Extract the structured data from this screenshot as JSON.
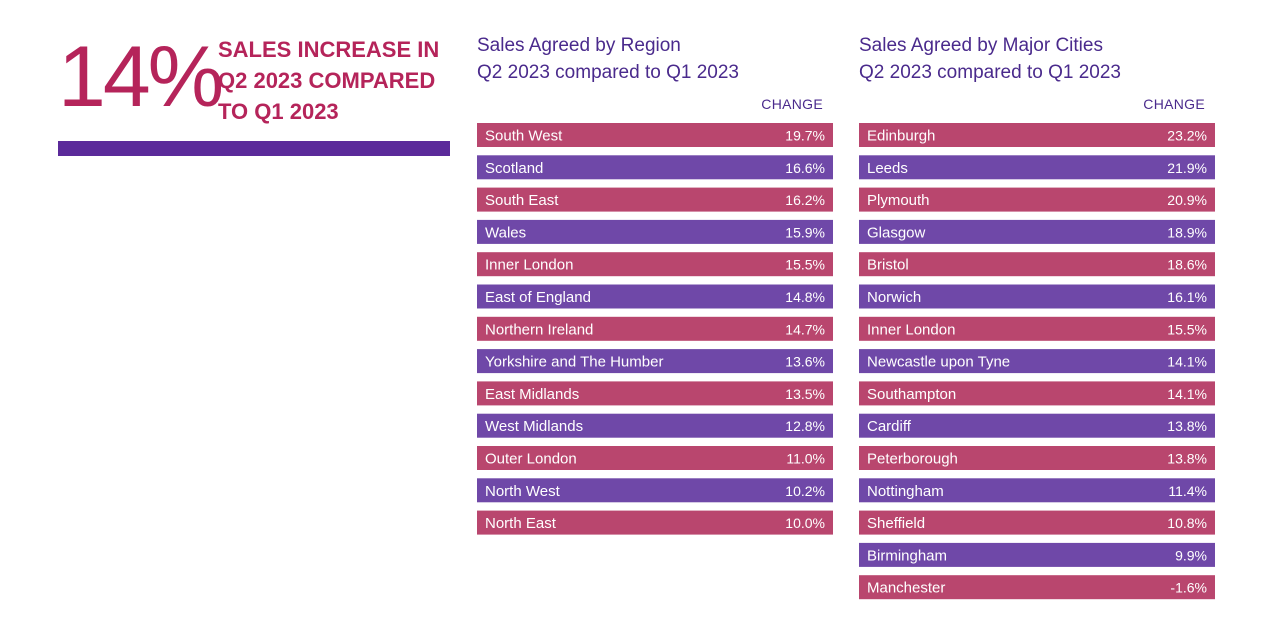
{
  "headline": {
    "figure": "14%",
    "text": "SALES INCREASE IN Q2 2023 COMPARED TO Q1 2023"
  },
  "colors": {
    "pink": "#b9466e",
    "purple": "#6f48a8",
    "rule": "#5b2a9a",
    "accent_text": "#b5245a",
    "title_text": "#4a2a8c"
  },
  "chart_data": [
    {
      "type": "table",
      "title": "Sales Agreed by Region",
      "subtitle": "Q2 2023 compared to Q1 2023",
      "column_header": "CHANGE",
      "categories": [
        "South West",
        "Scotland",
        "South East",
        "Wales",
        "Inner London",
        "East of England",
        "Northern Ireland",
        "Yorkshire and The Humber",
        "East Midlands",
        "West Midlands",
        "Outer London",
        "North West",
        "North East"
      ],
      "values": [
        19.7,
        16.6,
        16.2,
        15.9,
        15.5,
        14.8,
        14.7,
        13.6,
        13.5,
        12.8,
        11.0,
        10.2,
        10.0
      ],
      "value_labels": [
        "19.7%",
        "16.6%",
        "16.2%",
        "15.9%",
        "15.5%",
        "14.8%",
        "14.7%",
        "13.6%",
        "13.5%",
        "12.8%",
        "11.0%",
        "10.2%",
        "10.0%"
      ]
    },
    {
      "type": "table",
      "title": "Sales Agreed by Major Cities",
      "subtitle": "Q2 2023 compared to Q1 2023",
      "column_header": "CHANGE",
      "categories": [
        "Edinburgh",
        "Leeds",
        "Plymouth",
        "Glasgow",
        "Bristol",
        "Norwich",
        "Inner London",
        "Newcastle upon Tyne",
        "Southampton",
        "Cardiff",
        "Peterborough",
        "Nottingham",
        "Sheffield",
        "Birmingham",
        "Manchester"
      ],
      "values": [
        23.2,
        21.9,
        20.9,
        18.9,
        18.6,
        16.1,
        15.5,
        14.1,
        14.1,
        13.8,
        13.8,
        11.4,
        10.8,
        9.9,
        -1.6
      ],
      "value_labels": [
        "23.2%",
        "21.9%",
        "20.9%",
        "18.9%",
        "18.6%",
        "16.1%",
        "15.5%",
        "14.1%",
        "14.1%",
        "13.8%",
        "13.8%",
        "11.4%",
        "10.8%",
        "9.9%",
        "-1.6%"
      ]
    }
  ]
}
